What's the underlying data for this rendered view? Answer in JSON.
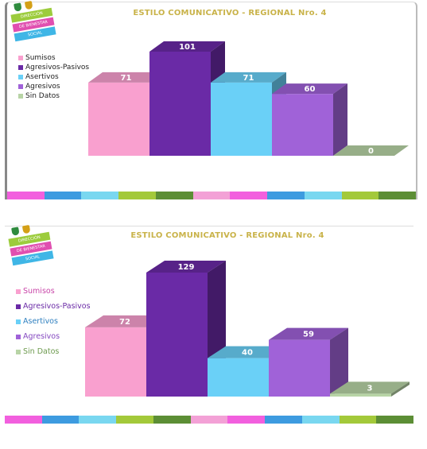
{
  "logo": {
    "text_lines": [
      "DIRECCIÓN",
      "DE BIENESTAR",
      "SOCIAL"
    ]
  },
  "palette": {
    "Sumisos": "#f9a0cf",
    "Agresivos-Pasivos": "#6a2aa6",
    "Asertivos": "#6ad0f7",
    "Agresivos": "#a062d8",
    "Sin Datos": "#b8d4a6"
  },
  "stripe_colors": [
    "#f25fde",
    "#3d9be0",
    "#79d7f0",
    "#a3c93a",
    "#5c8e35",
    "#f3a1d6",
    "#f25fde",
    "#3d9be0",
    "#79d7f0",
    "#a3c93a",
    "#5c8e35"
  ],
  "legend_text_colors": [
    "#222222",
    "#222222",
    "#222222",
    "#222222",
    "#222222"
  ],
  "legend_text_colors_2": [
    "#c845a8",
    "#6a2aa6",
    "#2e7fbf",
    "#8448c0",
    "#6d9a4e"
  ],
  "chart_data": [
    {
      "type": "bar",
      "title": "ESTILO COMUNICATIVO  - REGIONAL  Nro. 4",
      "categories": [
        "Sumisos",
        "Agresivos-Pasivos",
        "Asertivos",
        "Agresivos",
        "Sin Datos"
      ],
      "values": [
        71,
        101,
        71,
        60,
        0
      ],
      "legend": [
        "Sumisos",
        "Agresivos-Pasivos",
        "Asertivos",
        "Agresivos",
        "Sin Datos"
      ],
      "ylim": [
        0,
        101
      ],
      "grid": false,
      "legend_position": "left"
    },
    {
      "type": "bar",
      "title": "ESTILO COMUNICATIVO  - REGIONAL  Nro. 4",
      "categories": [
        "Sumisos",
        "Agresivos-Pasivos",
        "Asertivos",
        "Agresivos",
        "Sin Datos"
      ],
      "values": [
        72,
        129,
        40,
        59,
        3
      ],
      "legend": [
        "Sumisos",
        "Agresivos-Pasivos",
        "Asertivos",
        "Agresivos",
        "Sin Datos"
      ],
      "ylim": [
        0,
        129
      ],
      "grid": false,
      "legend_position": "left"
    }
  ]
}
